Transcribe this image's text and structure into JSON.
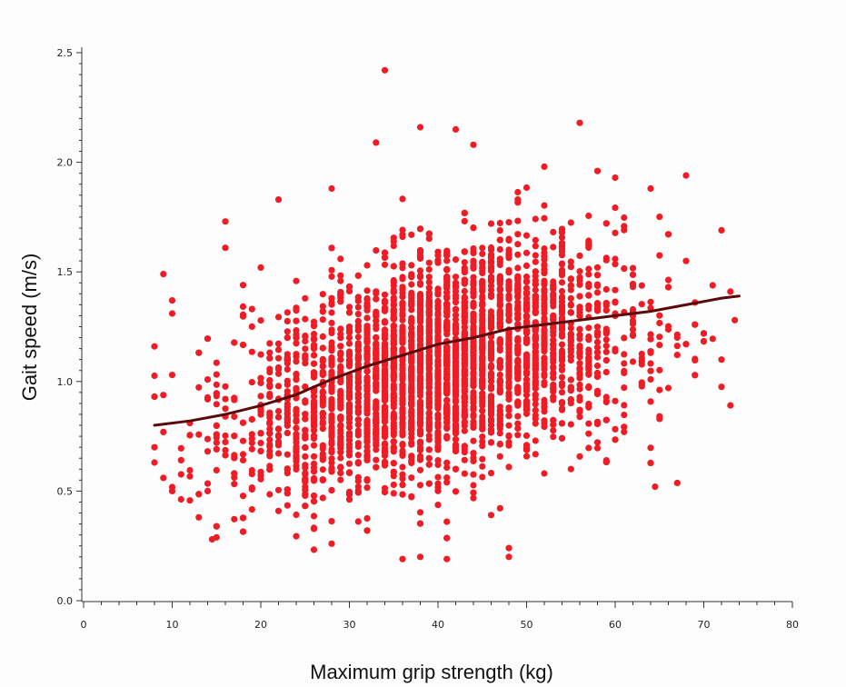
{
  "chart_data": {
    "type": "scatter",
    "title": "",
    "xlabel": "Maximum grip strength (kg)",
    "ylabel": "Gait speed (m/s)",
    "xlim": [
      0,
      80
    ],
    "ylim": [
      0,
      2.5
    ],
    "xticks": [
      0,
      10,
      20,
      30,
      40,
      50,
      60,
      70,
      80
    ],
    "yticks": [
      0.0,
      0.5,
      1.0,
      1.5,
      2.0,
      2.5
    ],
    "ytick_labels": [
      "0.0",
      "0.5",
      "1.0",
      "1.5",
      "2.0",
      "2.5"
    ],
    "grid": false,
    "legend": "none",
    "point_color": "#ee1c24",
    "line_color": "#5a0a0a",
    "scatter_density": {
      "n_points_estimate": 4000,
      "x_range": [
        8,
        74
      ],
      "y_range": [
        0.19,
        2.42
      ],
      "center_x": 40,
      "center_y": 1.02
    },
    "series": [
      {
        "type": "scatter",
        "points": [
          [
            8,
            1.16
          ],
          [
            8,
            0.7
          ],
          [
            8,
            0.63
          ],
          [
            9,
            1.49
          ],
          [
            9,
            0.56
          ],
          [
            10,
            1.37
          ],
          [
            10,
            1.31
          ],
          [
            10,
            1.03
          ],
          [
            10,
            0.5
          ],
          [
            12,
            0.81
          ],
          [
            14,
            0.5
          ],
          [
            14.5,
            0.28
          ],
          [
            16,
            1.73
          ],
          [
            16,
            1.61
          ],
          [
            18,
            1.44
          ],
          [
            20,
            1.52
          ],
          [
            22,
            1.83
          ],
          [
            28,
            1.88
          ],
          [
            28,
            0.26
          ],
          [
            33,
            2.09
          ],
          [
            34,
            2.42
          ],
          [
            38,
            2.16
          ],
          [
            36,
            0.19
          ],
          [
            38,
            0.2
          ],
          [
            41,
            0.19
          ],
          [
            42,
            2.15
          ],
          [
            44,
            2.08
          ],
          [
            48,
            0.2
          ],
          [
            48,
            0.24
          ],
          [
            52,
            1.98
          ],
          [
            56,
            2.18
          ],
          [
            58,
            1.96
          ],
          [
            60,
            1.93
          ],
          [
            64,
            1.88
          ],
          [
            64.5,
            0.52
          ],
          [
            68,
            1.94
          ],
          [
            72,
            1.69
          ],
          [
            72,
            1.1
          ],
          [
            73.5,
            1.28
          ],
          [
            73,
            1.41
          ],
          [
            59,
            0.64
          ],
          [
            61,
            0.77
          ],
          [
            66,
            0.97
          ]
        ]
      },
      {
        "type": "line",
        "name": "",
        "x": [
          8,
          12,
          16,
          20,
          24,
          28,
          32,
          36,
          40,
          44,
          48,
          52,
          56,
          60,
          64,
          68,
          72,
          74
        ],
        "y": [
          0.8,
          0.82,
          0.85,
          0.89,
          0.94,
          1.01,
          1.07,
          1.12,
          1.17,
          1.2,
          1.24,
          1.26,
          1.28,
          1.3,
          1.32,
          1.35,
          1.38,
          1.39
        ]
      }
    ]
  }
}
